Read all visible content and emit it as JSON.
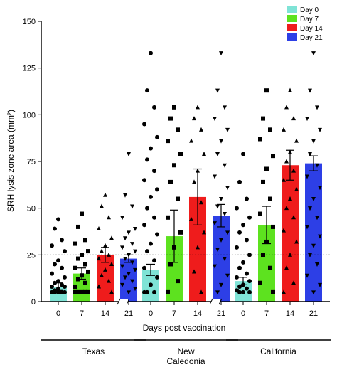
{
  "chart_data": {
    "type": "bar",
    "title": "",
    "xlabel": "Days post vaccination",
    "ylabel": "SRH lysis zone area (mm²)",
    "ylim": [
      0,
      150
    ],
    "yticks": [
      0,
      25,
      50,
      75,
      100,
      125,
      150
    ],
    "threshold": 25,
    "legend_position": "top-right",
    "grid": false,
    "categories": [
      "0",
      "7",
      "14",
      "21"
    ],
    "series": [
      {
        "name": "Day 0",
        "color": "#7fe3d6",
        "marker": "circle"
      },
      {
        "name": "Day 7",
        "color": "#5de21f",
        "marker": "square"
      },
      {
        "name": "Day 14",
        "color": "#ef1c1c",
        "marker": "triangle-up"
      },
      {
        "name": "Day 21",
        "color": "#2d3fe6",
        "marker": "triangle-down"
      }
    ],
    "groups": [
      {
        "name": "Texas",
        "means": [
          8,
          15,
          25,
          23
        ],
        "errors": [
          2,
          3,
          4,
          2
        ],
        "points": [
          [
            44,
            39,
            33,
            30,
            27,
            22,
            20,
            18,
            15,
            13,
            11,
            10,
            9,
            8,
            8,
            7,
            6,
            5,
            5,
            5,
            5,
            5
          ],
          [
            47,
            40,
            33,
            31,
            27,
            25,
            23,
            20,
            18,
            16,
            14,
            12,
            10,
            8,
            5,
            5,
            5,
            5,
            5
          ],
          [
            57,
            51,
            45,
            39,
            34,
            30,
            27,
            25,
            23,
            20,
            17,
            14,
            11,
            8,
            5
          ],
          [
            79,
            57,
            51,
            45,
            39,
            37,
            34,
            31,
            29,
            27,
            25,
            23,
            21,
            19,
            17,
            15,
            13,
            11,
            9,
            7,
            5
          ]
        ]
      },
      {
        "name": "New\nCaledonia",
        "means": [
          17,
          35,
          56,
          46
        ],
        "errors": [
          3,
          14,
          15,
          6
        ],
        "points": [
          [
            133,
            113,
            104,
            95,
            88,
            82,
            76,
            70,
            65,
            60,
            56,
            50,
            45,
            41,
            36,
            31,
            27,
            22,
            18,
            13,
            9,
            5,
            5,
            5
          ],
          [
            104,
            98,
            92,
            86,
            79,
            73,
            64,
            55,
            45,
            37,
            29,
            20,
            11,
            5
          ],
          [
            104,
            98,
            92,
            86,
            79,
            70,
            64,
            53,
            44,
            37,
            29,
            16,
            5
          ],
          [
            133,
            113,
            104,
            98,
            92,
            86,
            79,
            73,
            67,
            61,
            55,
            51,
            47,
            42,
            37,
            33,
            28,
            23,
            19,
            14,
            9,
            5
          ]
        ]
      },
      {
        "name": "California",
        "means": [
          11,
          41,
          73,
          74
        ],
        "errors": [
          2,
          10,
          8,
          4
        ],
        "points": [
          [
            79,
            64,
            55,
            50,
            45,
            41,
            37,
            33,
            29,
            25,
            21,
            18,
            15,
            13,
            11,
            9,
            8,
            7,
            6,
            5,
            5,
            5
          ],
          [
            113,
            98,
            92,
            87,
            78,
            71,
            64,
            55,
            47,
            40,
            32,
            25,
            18,
            10,
            5
          ],
          [
            113,
            104,
            98,
            92,
            86,
            80,
            75,
            70,
            65,
            60,
            55,
            50,
            45,
            38,
            32,
            25,
            18,
            10,
            5
          ],
          [
            133,
            113,
            104,
            98,
            92,
            86,
            79,
            73,
            67,
            61,
            55,
            50,
            45,
            40,
            35,
            30,
            25,
            20,
            14,
            9,
            5
          ]
        ]
      }
    ]
  }
}
